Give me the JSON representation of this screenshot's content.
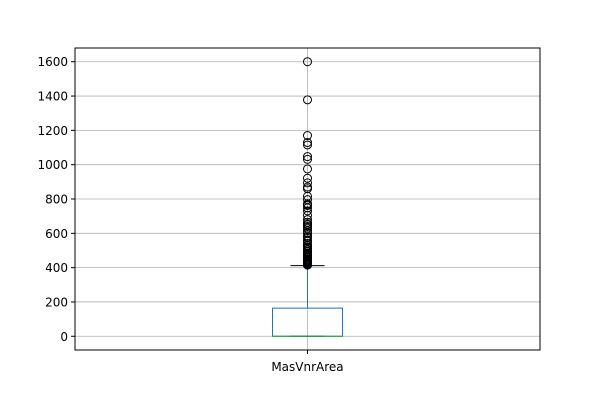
{
  "chart_data": {
    "type": "box",
    "categories": [
      "MasVnrArea"
    ],
    "ylim": [
      -80,
      1680
    ],
    "yticks": [
      0,
      200,
      400,
      600,
      800,
      1000,
      1200,
      1400,
      1600
    ],
    "grid": true,
    "box": {
      "min": 0,
      "q1": 0,
      "median": 0,
      "q3": 164,
      "whisker_low": 0,
      "whisker_high": 412
    },
    "outliers": [
      1600,
      1378,
      1170,
      1129,
      1115,
      1047,
      1031,
      975,
      921,
      894,
      870,
      860,
      816,
      796,
      772,
      766,
      762,
      748,
      731,
      705,
      680,
      664,
      653,
      650,
      640,
      630,
      616,
      604,
      600,
      584,
      576,
      562,
      554,
      541,
      530,
      522,
      513,
      504,
      495,
      485,
      480,
      472,
      466,
      459,
      452,
      448,
      443,
      438,
      434,
      430,
      426,
      423,
      420,
      417,
      415
    ],
    "colors": {
      "box": "#1f77b4",
      "median": "#2ca02c",
      "whisker": "#1f77b4",
      "cap": "#000000",
      "outlier": "#000000",
      "grid": "#b0b0b0",
      "axis": "#000000"
    }
  }
}
